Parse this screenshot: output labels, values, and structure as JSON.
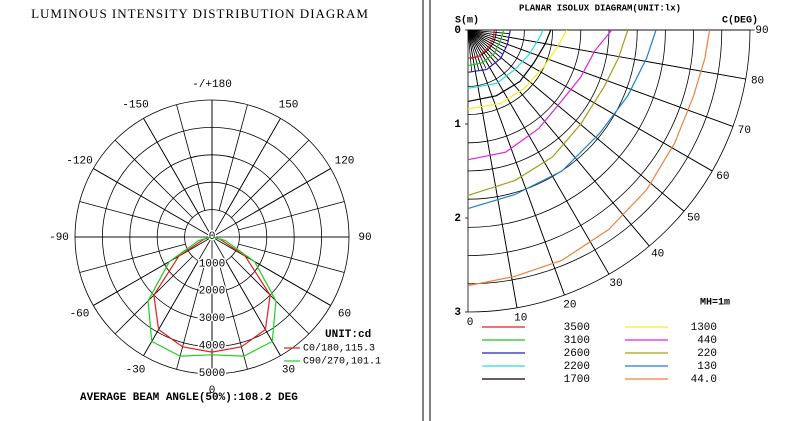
{
  "chart_data": [
    {
      "type": "polar",
      "title": "LUMINOUS INTENSITY DISTRIBUTION DIAGRAM",
      "angles": [
        -90,
        -75,
        -60,
        -45,
        -30,
        -15,
        0,
        15,
        30,
        45,
        60,
        75,
        90
      ],
      "series": [
        {
          "name": "C0/180,115.3",
          "color": "#e02020",
          "values": [
            50,
            300,
            1400,
            3000,
            3900,
            4150,
            4200,
            4150,
            3900,
            3000,
            1400,
            300,
            50
          ]
        },
        {
          "name": "C90/270,101.1",
          "color": "#20d020",
          "values": [
            50,
            500,
            1800,
            3300,
            4400,
            4500,
            4300,
            4500,
            4400,
            3300,
            1800,
            500,
            50
          ]
        }
      ],
      "rlim": [
        0,
        5000
      ],
      "rticks": [
        0,
        1000,
        2000,
        3000,
        4000,
        5000
      ],
      "angle_ticks": [
        0,
        30,
        60,
        90,
        120,
        150,
        {
          "value": 180,
          "label": "-/+180"
        },
        -150,
        -120,
        -90,
        -60,
        -30
      ],
      "unit": "UNIT:cd",
      "annotation": "AVERAGE BEAM ANGLE(50%):108.2 DEG"
    },
    {
      "type": "isolux",
      "title": "PLANAR ISOLUX DIAGRAM(UNIT:lx)",
      "ylabel": "S(m)",
      "xlabel": "C(DEG)",
      "ylim": [
        0,
        3
      ],
      "yticks": [
        0,
        1,
        2,
        3
      ],
      "angle_ticks": [
        0,
        10,
        20,
        30,
        40,
        50,
        60,
        70,
        80,
        90
      ],
      "annotation": "MH=1m",
      "series": [
        {
          "name": "3500",
          "color": "#e02020",
          "x": [
            0,
            0.12,
            0.22,
            0.27,
            0.28
          ],
          "values": [
            0.3,
            0.28,
            0.18,
            0.08,
            0
          ]
        },
        {
          "name": "3100",
          "color": "#20c020",
          "x": [
            0,
            0.15,
            0.28,
            0.35,
            0.38
          ],
          "values": [
            0.38,
            0.35,
            0.25,
            0.1,
            0
          ]
        },
        {
          "name": "2600",
          "color": "#2020c0",
          "x": [
            0,
            0.2,
            0.35,
            0.42,
            0.45
          ],
          "values": [
            0.45,
            0.42,
            0.3,
            0.15,
            0
          ]
        },
        {
          "name": "2200",
          "color": "#20e0e0",
          "x": [
            0,
            0.3,
            0.5,
            0.65,
            0.75,
            0.8
          ],
          "values": [
            0.62,
            0.57,
            0.42,
            0.26,
            0.1,
            0
          ]
        },
        {
          "name": "1700",
          "color": "#000000",
          "x": [
            0,
            0.3,
            0.55,
            0.7,
            0.82,
            0.88
          ],
          "values": [
            0.76,
            0.7,
            0.55,
            0.35,
            0.15,
            0
          ]
        },
        {
          "name": "1300",
          "color": "#f0f020",
          "x": [
            0,
            0.35,
            0.6,
            0.8,
            0.95,
            1.05
          ],
          "values": [
            0.84,
            0.78,
            0.62,
            0.4,
            0.18,
            0
          ]
        },
        {
          "name": "440",
          "color": "#e020e0",
          "x": [
            0,
            0.4,
            0.75,
            1.0,
            1.2,
            1.35,
            1.53
          ],
          "values": [
            1.38,
            1.3,
            1.05,
            0.75,
            0.5,
            0.22,
            0
          ]
        },
        {
          "name": "220",
          "color": "#a0a020",
          "x": [
            0,
            0.5,
            0.9,
            1.2,
            1.45,
            1.6,
            1.7
          ],
          "values": [
            1.76,
            1.6,
            1.35,
            1.0,
            0.6,
            0.3,
            0
          ]
        },
        {
          "name": "130",
          "color": "#1e7fd0",
          "x": [
            0,
            0.5,
            1.0,
            1.4,
            1.7,
            1.9,
            2.0
          ],
          "values": [
            1.9,
            1.75,
            1.5,
            1.1,
            0.7,
            0.3,
            0
          ]
        },
        {
          "name": "44.0",
          "color": "#f08040",
          "x": [
            0,
            0.5,
            1.0,
            1.5,
            1.9,
            2.2,
            2.4,
            2.52,
            2.57
          ],
          "values": [
            2.72,
            2.62,
            2.45,
            2.12,
            1.7,
            1.2,
            0.7,
            0.3,
            0
          ]
        }
      ]
    }
  ]
}
